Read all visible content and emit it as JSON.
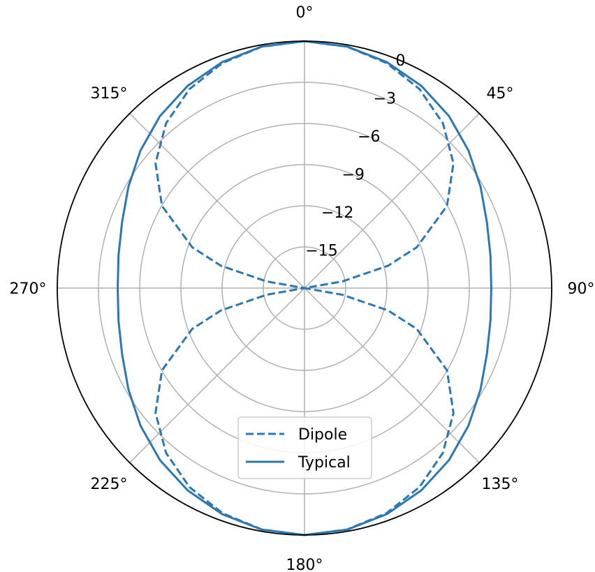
{
  "chart_data": {
    "type": "line",
    "projection": "polar",
    "theta_zero_location": "top",
    "theta_direction": "clockwise",
    "rlim": [
      -18,
      0
    ],
    "rticks": [
      -15,
      -12,
      -9,
      -6,
      -3,
      0
    ],
    "rtick_labels": [
      "−15",
      "−12",
      "−9",
      "−6",
      "−3",
      "0"
    ],
    "theta_ticks": [
      0,
      45,
      90,
      135,
      180,
      225,
      270,
      315
    ],
    "theta_tick_labels": [
      "0°",
      "45°",
      "90°",
      "135°",
      "180°",
      "225°",
      "270°",
      "315°"
    ],
    "grid": true,
    "legend_position": "lower-center",
    "colors": {
      "series": "#2a78b4",
      "grid": "#b0b0b0",
      "frame": "#000000"
    },
    "series": [
      {
        "name": "Dipole",
        "style": "dashed",
        "theta_deg": [
          0,
          10,
          20,
          30,
          40,
          50,
          60,
          70,
          75,
          80,
          85,
          90,
          95,
          100,
          105,
          110,
          120,
          130,
          140,
          150,
          160,
          170,
          180,
          190,
          200,
          210,
          220,
          230,
          240,
          250,
          255,
          260,
          265,
          270,
          275,
          280,
          285,
          290,
          300,
          310,
          320,
          330,
          340,
          350,
          360
        ],
        "r_db": [
          0,
          -0.13,
          -0.54,
          -1.25,
          -2.32,
          -3.84,
          -6.02,
          -9.3,
          -11.7,
          -15.2,
          -18,
          -18,
          -18,
          -15.2,
          -11.7,
          -9.3,
          -6.02,
          -3.84,
          -2.32,
          -1.25,
          -0.54,
          -0.13,
          0,
          -0.13,
          -0.54,
          -1.25,
          -2.32,
          -3.84,
          -6.02,
          -9.3,
          -11.7,
          -15.2,
          -18,
          -18,
          -18,
          -15.2,
          -11.7,
          -9.3,
          -6.02,
          -3.84,
          -2.32,
          -1.25,
          -0.54,
          -0.13,
          0
        ]
      },
      {
        "name": "Typical",
        "style": "solid",
        "theta_deg": [
          0,
          10,
          20,
          30,
          40,
          50,
          60,
          70,
          80,
          90,
          100,
          110,
          120,
          130,
          140,
          150,
          160,
          170,
          180,
          190,
          200,
          210,
          220,
          230,
          240,
          250,
          260,
          270,
          280,
          290,
          300,
          310,
          320,
          330,
          340,
          350,
          360
        ],
        "r_db": [
          0,
          -0.12,
          -0.47,
          -0.98,
          -1.63,
          -2.41,
          -3.2,
          -3.87,
          -4.25,
          -4.4,
          -4.25,
          -3.87,
          -3.2,
          -2.41,
          -1.63,
          -0.98,
          -0.47,
          -0.12,
          0,
          -0.12,
          -0.47,
          -0.98,
          -1.63,
          -2.41,
          -3.2,
          -3.87,
          -4.25,
          -4.4,
          -4.25,
          -3.87,
          -3.2,
          -2.41,
          -1.63,
          -0.98,
          -0.47,
          -0.12,
          0
        ]
      }
    ]
  }
}
